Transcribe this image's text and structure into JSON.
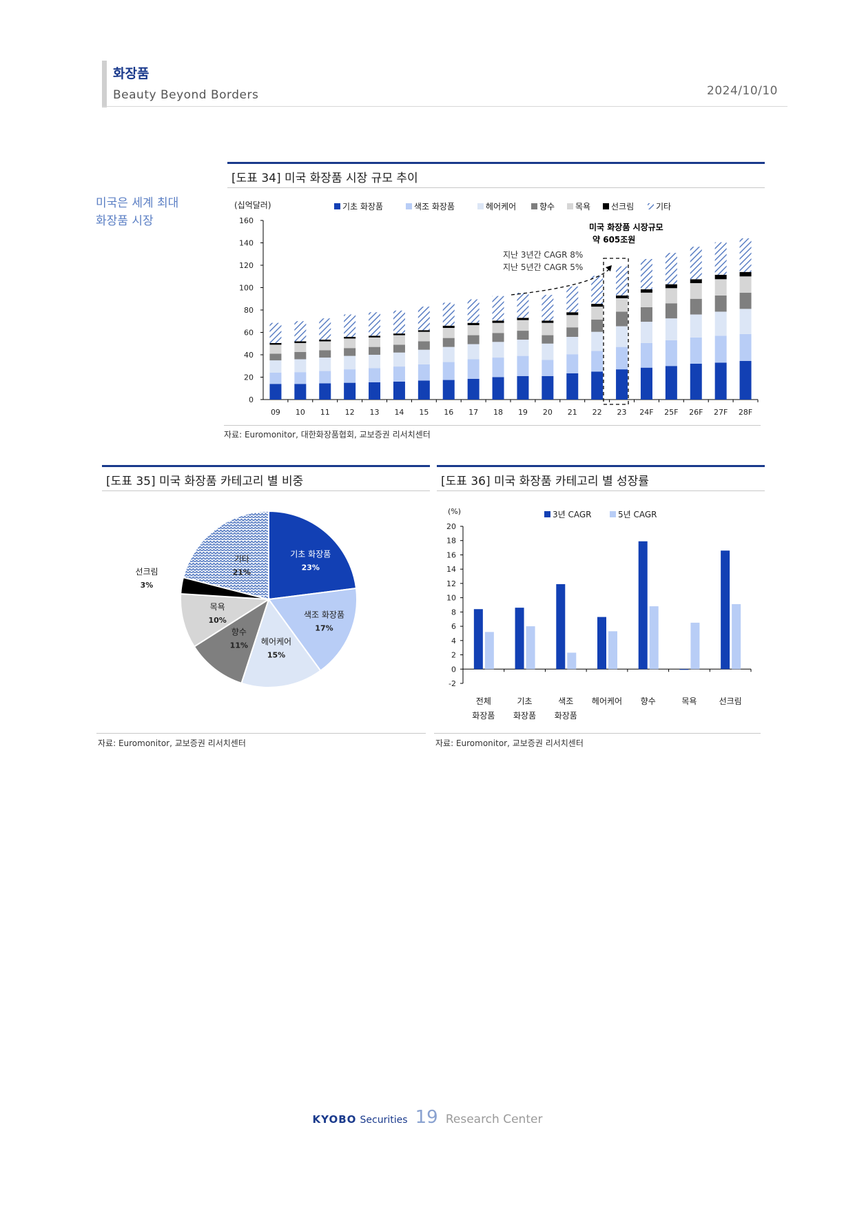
{
  "header": {
    "title": "화장품",
    "subtitle": "Beauty Beyond Borders",
    "date": "2024/10/10"
  },
  "side_note": "미국은 세계 최대\n화장품 시장",
  "fig34": {
    "title": "[도표 34] 미국 화장품 시장 규모 추이",
    "source": "자료: Euromonitor, 대한화장품협회, 교보증권 리서치센터",
    "annotation_market": [
      "미국 화장품 시장규모",
      "약 605조원"
    ],
    "annotation_cagr": [
      "지난 3년간 CAGR 8%",
      "지난 5년간 CAGR 5%"
    ]
  },
  "fig35": {
    "title": "[도표 35] 미국 화장품 카테고리 별 비중",
    "source": "자료: Euromonitor, 교보증권 리서치센터"
  },
  "fig36": {
    "title": "[도표 36] 미국 화장품 카테고리 별 성장률",
    "source": "자료: Euromonitor, 교보증권 리서치센터"
  },
  "footer": {
    "brand": "KYOBO",
    "brand2": "Securities",
    "page": "19",
    "center": "Research Center"
  },
  "colors": {
    "basic": "#1240b4",
    "color": "#b8cdf6",
    "hair": "#dce6f6",
    "fragrance": "#7f7f7f",
    "bath": "#d6d6d6",
    "sun": "#000000",
    "other": "#5b7fc4",
    "navy": "#1a3a8c"
  },
  "chart_data": [
    {
      "type": "bar",
      "stacked": true,
      "ylabel": "(십억달러)",
      "ylim": [
        0,
        160
      ],
      "yticks": [
        0,
        20,
        40,
        60,
        80,
        100,
        120,
        140,
        160
      ],
      "categories": [
        "09",
        "10",
        "11",
        "12",
        "13",
        "14",
        "15",
        "16",
        "17",
        "18",
        "19",
        "20",
        "21",
        "22",
        "23",
        "24F",
        "25F",
        "26F",
        "27F",
        "28F"
      ],
      "legend": "top",
      "series": [
        {
          "name": "기초 화장품",
          "values": [
            14,
            14,
            14.5,
            15,
            15.5,
            16,
            17,
            17.5,
            18.5,
            20,
            21,
            21,
            23.5,
            25,
            27,
            28.5,
            30,
            32,
            33,
            34.5
          ]
        },
        {
          "name": "색조 화장품",
          "values": [
            10,
            10.5,
            11,
            12,
            12.5,
            13.5,
            14.5,
            16,
            17.5,
            17.5,
            18,
            14.5,
            17,
            18.5,
            20,
            22,
            23,
            23.5,
            24,
            24
          ]
        },
        {
          "name": "헤어케어",
          "values": [
            11,
            11.5,
            12,
            12,
            12,
            12.5,
            13,
            13.5,
            13.5,
            14,
            14.5,
            14.5,
            15.5,
            17,
            18.5,
            19,
            19.5,
            20.5,
            21.5,
            22.5
          ]
        },
        {
          "name": "향수",
          "values": [
            6,
            6.5,
            6.5,
            7,
            7,
            7,
            7.5,
            8,
            8,
            8,
            8,
            7.5,
            8.5,
            11,
            13,
            13,
            13.5,
            14,
            14.5,
            14.5
          ]
        },
        {
          "name": "목욕",
          "values": [
            8,
            8,
            8,
            8.5,
            8.5,
            8.5,
            8.5,
            9,
            9,
            9,
            9.5,
            11,
            11,
            11.5,
            12,
            13,
            13.5,
            14,
            14.5,
            14.5
          ]
        },
        {
          "name": "선크림",
          "values": [
            1.5,
            1.5,
            1.5,
            1.5,
            1.5,
            1.5,
            1.5,
            2,
            2,
            2,
            2,
            2,
            2.5,
            2.5,
            2.5,
            3,
            3.5,
            3.5,
            4,
            4
          ]
        },
        {
          "name": "기타",
          "values": [
            18,
            18,
            19,
            20,
            21,
            20.5,
            21,
            20.5,
            21,
            22,
            22.5,
            23,
            23,
            25,
            26,
            27,
            28,
            29,
            29,
            30
          ]
        }
      ]
    },
    {
      "type": "pie",
      "slices": [
        {
          "name": "기초 화장품",
          "label": "23%",
          "value": 23
        },
        {
          "name": "색조 화장품",
          "label": "17%",
          "value": 17
        },
        {
          "name": "헤어케어",
          "label": "15%",
          "value": 15
        },
        {
          "name": "향수",
          "label": "11%",
          "value": 11
        },
        {
          "name": "목욕",
          "label": "10%",
          "value": 10
        },
        {
          "name": "선크림",
          "label": "3%",
          "value": 3
        },
        {
          "name": "기타",
          "label": "21%",
          "value": 21
        }
      ]
    },
    {
      "type": "bar",
      "ylabel": "(%)",
      "ylim": [
        -2,
        20
      ],
      "yticks": [
        -2,
        0,
        2,
        4,
        6,
        8,
        10,
        12,
        14,
        16,
        18,
        20
      ],
      "categories": [
        [
          "전체",
          "화장품"
        ],
        [
          "기초",
          "화장품"
        ],
        [
          "색조",
          "화장품"
        ],
        [
          "헤어케어"
        ],
        [
          "향수"
        ],
        [
          "목욕"
        ],
        [
          "선크림"
        ]
      ],
      "legend": "top",
      "series": [
        {
          "name": "3년 CAGR",
          "values": [
            8.4,
            8.6,
            11.9,
            7.3,
            17.9,
            -0.1,
            16.6
          ]
        },
        {
          "name": "5년 CAGR",
          "values": [
            5.2,
            6.0,
            2.3,
            5.3,
            8.8,
            6.5,
            9.1
          ]
        }
      ]
    }
  ]
}
